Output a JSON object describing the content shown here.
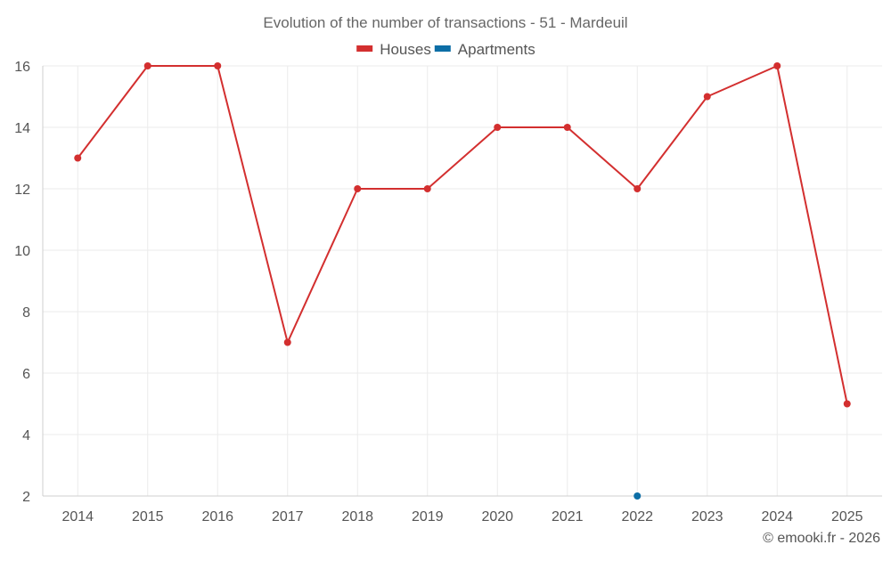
{
  "chart_data": {
    "type": "line",
    "title": "Evolution of the number of transactions - 51 - Mardeuil",
    "categories": [
      "2014",
      "2015",
      "2016",
      "2017",
      "2018",
      "2019",
      "2020",
      "2021",
      "2022",
      "2023",
      "2024",
      "2025"
    ],
    "series": [
      {
        "name": "Houses",
        "color": "#d32f2f",
        "values": [
          13,
          16,
          16,
          7,
          12,
          12,
          14,
          14,
          12,
          15,
          16,
          5
        ]
      },
      {
        "name": "Apartments",
        "color": "#0d6ea6",
        "values": [
          null,
          null,
          null,
          null,
          null,
          null,
          null,
          null,
          2,
          null,
          null,
          null
        ]
      }
    ],
    "yticks": [
      2,
      4,
      6,
      8,
      10,
      12,
      14,
      16
    ],
    "ylim": [
      2,
      16
    ],
    "xlabel": "",
    "ylabel": "",
    "grid": true,
    "legend": "top-center"
  },
  "credit": "© emooki.fr - 2026"
}
